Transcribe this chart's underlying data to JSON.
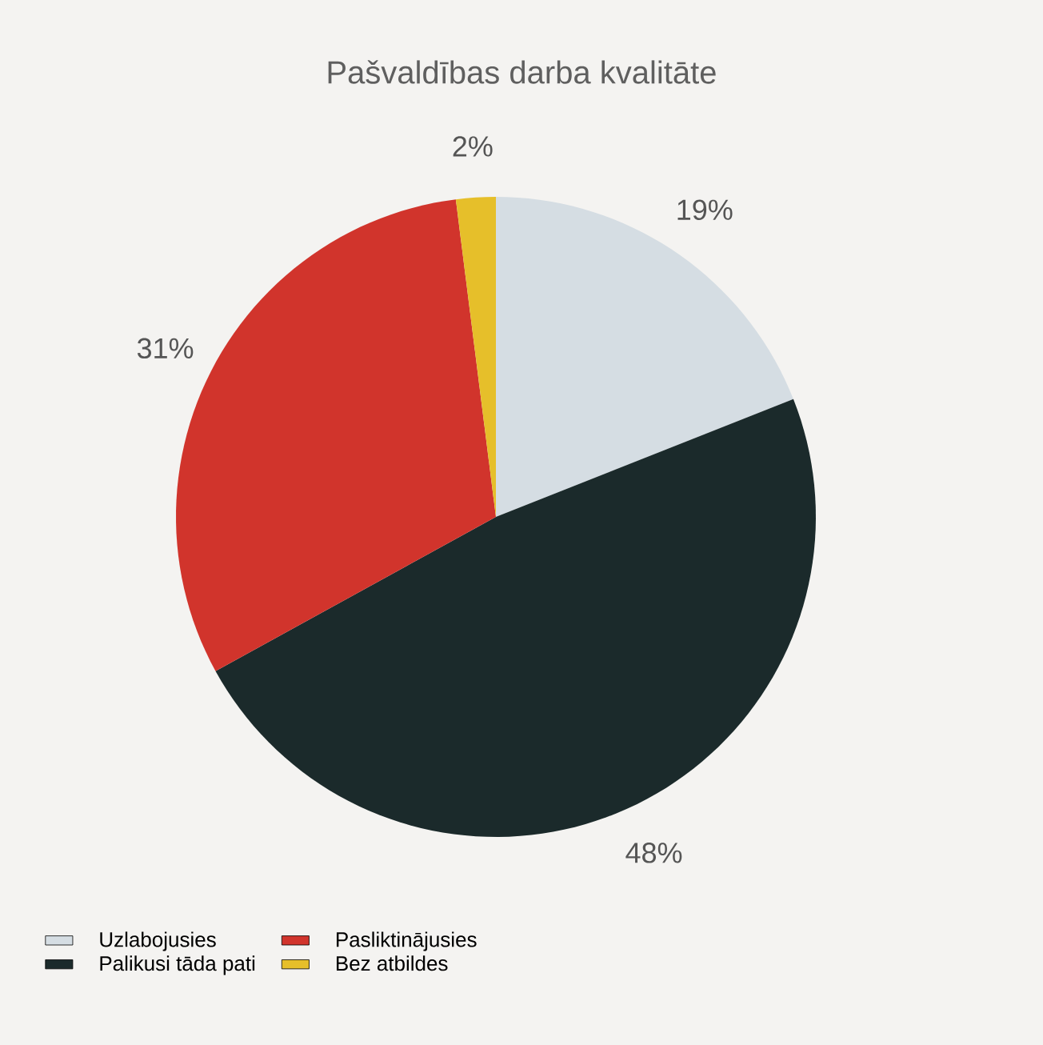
{
  "chart_data": {
    "type": "pie",
    "title": "Pašvaldības darba kvalitāte",
    "categories": [
      "Uzlabojusies",
      "Palikusi tāda pati",
      "Pasliktinājusies",
      "Bez atbildes"
    ],
    "values": [
      19,
      48,
      31,
      2
    ],
    "value_labels": [
      "19%",
      "48%",
      "31%",
      "2%"
    ],
    "colors": [
      "#d5dde3",
      "#1b2a2b",
      "#d1342c",
      "#e6bf2a"
    ],
    "legend": "bottom left"
  }
}
